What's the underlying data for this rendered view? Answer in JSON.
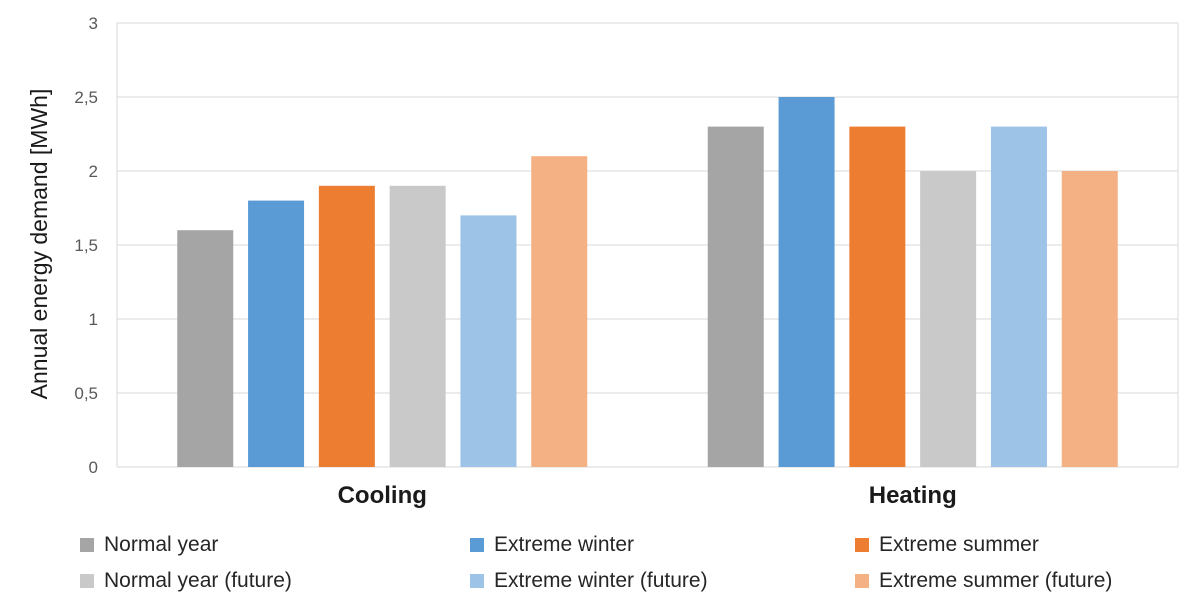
{
  "chart_data": {
    "type": "bar",
    "title": "",
    "xlabel": "",
    "ylabel": "Annual energy demand [MWh]",
    "ylim": [
      0,
      3
    ],
    "yticks": [
      "0",
      "0,5",
      "1",
      "1,5",
      "2",
      "2,5",
      "3"
    ],
    "grid": true,
    "legend_position": "bottom",
    "categories": [
      "Cooling",
      "Heating"
    ],
    "series": [
      {
        "name": "Normal year",
        "color": "#a5a5a5",
        "values": [
          1.6,
          2.3
        ]
      },
      {
        "name": "Extreme winter",
        "color": "#5b9bd5",
        "values": [
          1.8,
          2.5
        ]
      },
      {
        "name": "Extreme summer",
        "color": "#ed7d31",
        "values": [
          1.9,
          2.3
        ]
      },
      {
        "name": "Normal year (future)",
        "color": "#c9c9c9",
        "values": [
          1.9,
          2.0
        ]
      },
      {
        "name": "Extreme winter (future)",
        "color": "#9dc3e6",
        "values": [
          1.7,
          2.3
        ]
      },
      {
        "name": "Extreme summer (future)",
        "color": "#f4b183",
        "values": [
          2.1,
          2.0
        ]
      }
    ]
  }
}
